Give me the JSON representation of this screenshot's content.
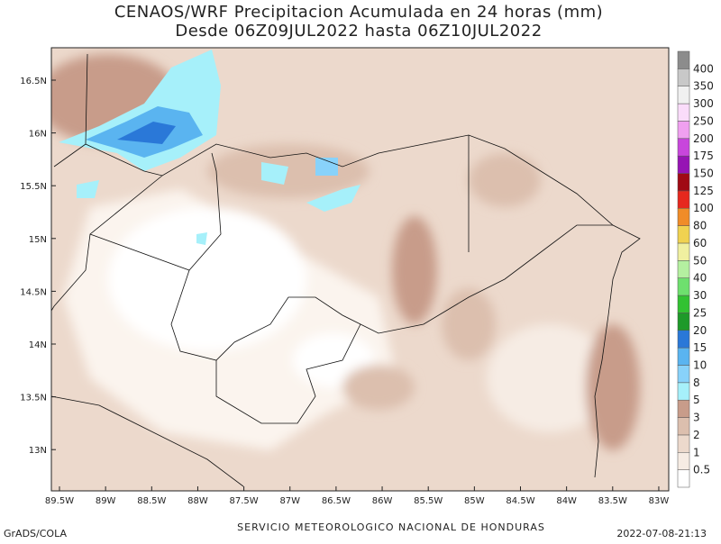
{
  "header": {
    "title": "CENAOS/WRF Precipitacion Acumulada en 24 horas (mm)",
    "subtitle": "Desde 06Z09JUL2022 hasta 06Z10JUL2022"
  },
  "map": {
    "lat_labels": [
      "16.5N",
      "16N",
      "15.5N",
      "15N",
      "14.5N",
      "14N",
      "13.5N",
      "13N"
    ],
    "lon_labels": [
      "89.5W",
      "89W",
      "88.5W",
      "88W",
      "87.5W",
      "87W",
      "86.5W",
      "86W",
      "85.5W",
      "85W",
      "84.5W",
      "84W",
      "83.5W",
      "83W"
    ]
  },
  "colorbar": {
    "labels": [
      "0.5",
      "1",
      "2",
      "3",
      "5",
      "8",
      "10",
      "15",
      "20",
      "25",
      "30",
      "40",
      "50",
      "60",
      "80",
      "100",
      "125",
      "150",
      "175",
      "200",
      "250",
      "300",
      "350",
      "400"
    ],
    "colors": [
      "#ffffff",
      "#f6ece4",
      "#ecd9cc",
      "#dcbfae",
      "#c89c8a",
      "#a6f0fa",
      "#88d2fa",
      "#5ab4f0",
      "#2a78d8",
      "#1e9a2a",
      "#32c232",
      "#6ee06e",
      "#b4f0a0",
      "#f0f0a0",
      "#f0d250",
      "#f08c28",
      "#e6281e",
      "#a00a14",
      "#9614b4",
      "#c846dc",
      "#f0a0f0",
      "#fadcfa",
      "#f0f0f0",
      "#c8c8c8",
      "#8c8c8c"
    ]
  },
  "footer": {
    "left": "GrADS/COLA",
    "center": "SERVICIO METEOROLOGICO NACIONAL DE HONDURAS",
    "right": "2022-07-08-21:13"
  }
}
